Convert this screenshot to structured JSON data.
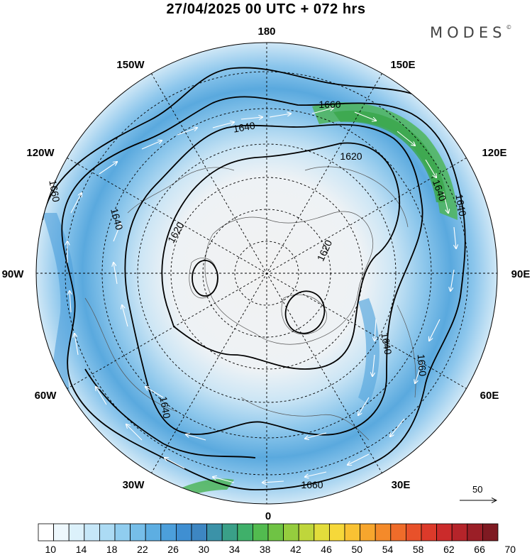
{
  "title": "27/04/2025  00 UTC  + 072 hrs",
  "brand": "MODES",
  "brand_mark": "©",
  "longitude_labels": [
    {
      "text": "180",
      "lon": 180
    },
    {
      "text": "150E",
      "lon": 150
    },
    {
      "text": "120E",
      "lon": 120
    },
    {
      "text": "90E",
      "lon": 90
    },
    {
      "text": "60E",
      "lon": 60
    },
    {
      "text": "30E",
      "lon": 30
    },
    {
      "text": "0",
      "lon": 0
    },
    {
      "text": "30W",
      "lon": -30
    },
    {
      "text": "60W",
      "lon": -60
    },
    {
      "text": "90W",
      "lon": -90
    },
    {
      "text": "120W",
      "lon": -120
    },
    {
      "text": "150W",
      "lon": -150
    }
  ],
  "contour_labels": [
    "1660",
    "1640",
    "1620",
    "1620",
    "1640",
    "1660",
    "1620",
    "1640",
    "1640",
    "1660",
    "1660",
    "1640",
    "1640"
  ],
  "wind_reference_value": "50",
  "colorbar": {
    "tick_labels": [
      "10",
      "14",
      "18",
      "22",
      "26",
      "30",
      "34",
      "38",
      "42",
      "46",
      "50",
      "54",
      "58",
      "62",
      "66",
      "70"
    ],
    "colors": [
      "#ffffff",
      "#eef8fd",
      "#dcf1fb",
      "#c6e7f8",
      "#acdbf4",
      "#90cdef",
      "#76bee9",
      "#5daee2",
      "#4c9fdb",
      "#3f8fd2",
      "#3d86c2",
      "#3b92a8",
      "#3aa088",
      "#3fb06a",
      "#52bb4f",
      "#6fc344",
      "#95cd3e",
      "#bfd63b",
      "#e3dd3b",
      "#f6d83a",
      "#f9c233",
      "#f7a62d",
      "#f48a2a",
      "#ef6c2a",
      "#e8512a",
      "#dc3a2a",
      "#cb2b2b",
      "#b5242a",
      "#9b1f27",
      "#7f1a22"
    ]
  }
}
